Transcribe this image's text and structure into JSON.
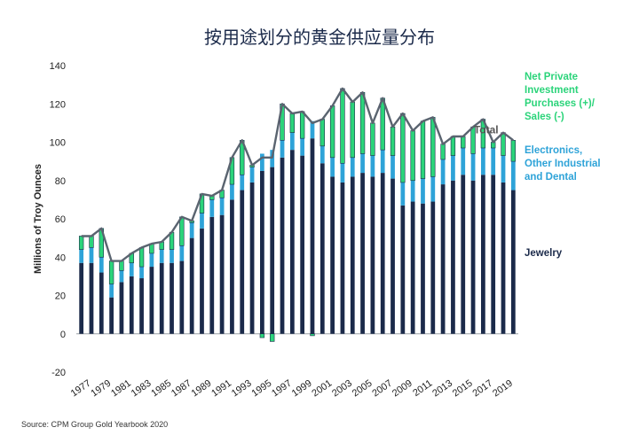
{
  "title": "按用途划分的黄金供应量分布",
  "source": "Source: CPM Group Gold Yearbook 2020",
  "chart_data": {
    "type": "bar",
    "stacked": true,
    "ylabel": "Millions of Troy Ounces",
    "ylim": [
      -20,
      140
    ],
    "yticks": [
      -20,
      0,
      20,
      40,
      60,
      80,
      100,
      120,
      140
    ],
    "years": [
      1976,
      1977,
      1978,
      1979,
      1980,
      1981,
      1982,
      1983,
      1984,
      1985,
      1986,
      1987,
      1988,
      1989,
      1990,
      1991,
      1992,
      1993,
      1994,
      1995,
      1996,
      1997,
      1998,
      1999,
      2000,
      2001,
      2002,
      2003,
      2004,
      2005,
      2006,
      2007,
      2008,
      2009,
      2010,
      2011,
      2012,
      2013,
      2014,
      2015,
      2016,
      2017,
      2018,
      2019
    ],
    "x_tick_labels": [
      "1977",
      "1979",
      "1981",
      "1983",
      "1985",
      "1987",
      "1989",
      "1991",
      "1993",
      "1995",
      "1997",
      "1999",
      "2001",
      "2003",
      "2005",
      "2007",
      "2009",
      "2011",
      "2013",
      "2015",
      "2017",
      "2019"
    ],
    "colors": {
      "jewelry": "#1b2a4a",
      "electronics": "#2ea3d8",
      "investment": "#2bd47a",
      "total": "#5a6470"
    },
    "series": [
      {
        "name": "Jewelry",
        "key": "jewelry",
        "values": [
          37,
          37,
          32,
          19,
          27,
          30,
          29,
          35,
          37,
          37,
          38,
          50,
          55,
          61,
          62,
          70,
          75,
          79,
          85,
          87,
          92,
          96,
          93,
          102,
          89,
          82,
          79,
          82,
          84,
          82,
          84,
          81,
          67,
          69,
          68,
          69,
          78,
          80,
          83,
          80,
          83,
          83,
          79,
          75
        ]
      },
      {
        "name": "Electronics, Other Industrial and Dental",
        "key": "electronics",
        "values": [
          7,
          8,
          8,
          7,
          6,
          7,
          6,
          7,
          7,
          7,
          8,
          8,
          8,
          9,
          9,
          8,
          8,
          8,
          9,
          9,
          9,
          9,
          9,
          9,
          9,
          10,
          10,
          10,
          10,
          11,
          12,
          12,
          12,
          11,
          13,
          13,
          13,
          13,
          14,
          14,
          14,
          14,
          14,
          15
        ]
      },
      {
        "name": "Net Private Investment Purchases (+)/ Sales (-)",
        "key": "investment",
        "values": [
          7,
          6,
          15,
          12,
          5,
          5,
          10,
          5,
          4,
          9,
          15,
          1,
          10,
          2,
          4,
          14,
          18,
          1,
          -2,
          -4,
          19,
          10,
          14,
          -1,
          14,
          27,
          39,
          29,
          32,
          17,
          27,
          15,
          36,
          26,
          30,
          31,
          8,
          10,
          6,
          14,
          15,
          3,
          12,
          11
        ]
      }
    ],
    "total_label": "Total",
    "legend": [
      {
        "key": "investment",
        "lines": [
          "Net Private",
          "Investment",
          "Purchases (+)/",
          "Sales (-)"
        ]
      },
      {
        "key": "electronics",
        "lines": [
          "Electronics,",
          "Other Industrial",
          "and Dental"
        ]
      },
      {
        "key": "jewelry",
        "lines": [
          "Jewelry"
        ]
      }
    ],
    "legend_placement": "right"
  }
}
